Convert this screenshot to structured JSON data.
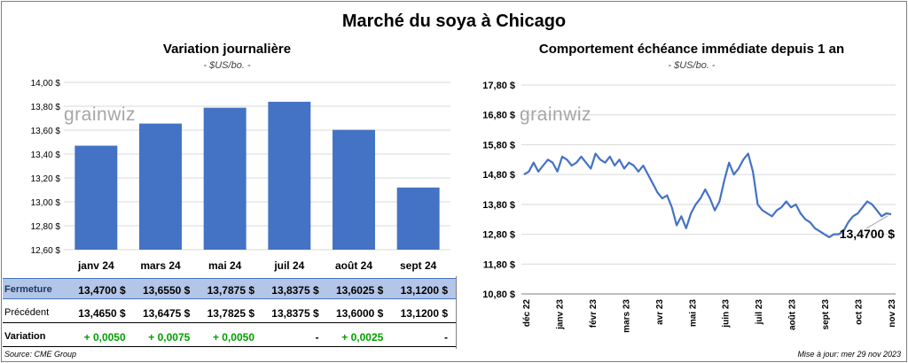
{
  "page": {
    "title": "Marché du soya à Chicago"
  },
  "watermark": "grainwiz",
  "left_chart": {
    "title": "Variation journalière",
    "subtitle": "- $US/bo. -"
  },
  "right_chart": {
    "title": "Comportement échéance immédiate depuis 1 an",
    "subtitle": "- $US/bo. -"
  },
  "table": {
    "rows": [
      {
        "label": "Fermeture",
        "values": [
          "13,4700 $",
          "13,6550 $",
          "13,7875 $",
          "13,8375 $",
          "13,6025 $",
          "13,1200 $"
        ]
      },
      {
        "label": "Précédent",
        "values": [
          "13,4650 $",
          "13,6475 $",
          "13,7825 $",
          "13,8375 $",
          "13,6000 $",
          "13,1200 $"
        ]
      },
      {
        "label": "Variation",
        "values": [
          "+ 0,0050",
          "+ 0,0075",
          "+ 0,0050",
          "-",
          "+ 0,0025",
          "-"
        ]
      }
    ]
  },
  "footer": {
    "source": "Source: CME Group",
    "updated": "Mise à jour: mer 29 nov 2023"
  },
  "colors": {
    "bar": "#4472c4",
    "line": "#4472c4",
    "fermeture_bg": "#b4c6e7",
    "variation_positive": "#00a000"
  },
  "chart_data": [
    {
      "type": "bar",
      "categories": [
        "janv 24",
        "mars 24",
        "mai 24",
        "juil 24",
        "août 24",
        "sept 24"
      ],
      "values": [
        13.47,
        13.655,
        13.7875,
        13.8375,
        13.6025,
        13.12
      ],
      "ylim": [
        12.6,
        14.0
      ],
      "yticks": [
        12.6,
        12.8,
        13.0,
        13.2,
        13.4,
        13.6,
        13.8,
        14.0
      ],
      "ytick_labels": [
        "12,60 $",
        "12,80 $",
        "13,00 $",
        "13,20 $",
        "13,40 $",
        "13,60 $",
        "13,80 $",
        "14,00 $"
      ],
      "grid": true
    },
    {
      "type": "line",
      "ylim": [
        10.8,
        17.8
      ],
      "yticks": [
        10.8,
        11.8,
        12.8,
        13.8,
        14.8,
        15.8,
        16.8,
        17.8
      ],
      "ytick_labels": [
        "10,80 $",
        "11,80 $",
        "12,80 $",
        "13,80 $",
        "14,80 $",
        "15,80 $",
        "16,80 $",
        "17,80 $"
      ],
      "xticks": [
        "déc 22",
        "janv 23",
        "févr 23",
        "mars 23",
        "avr 23",
        "mai 23",
        "juin 23",
        "juil 23",
        "août 23",
        "sept 23",
        "oct 23",
        "nov 23"
      ],
      "last_value_label": "13,4700 $",
      "grid": true,
      "series": [
        {
          "values": [
            14.8,
            14.9,
            15.2,
            14.9,
            15.1,
            15.3,
            15.2,
            14.9,
            15.4,
            15.3,
            15.1,
            15.2,
            15.4,
            15.2,
            15.0,
            15.5,
            15.3,
            15.2,
            15.4,
            15.1,
            15.3,
            15.0,
            15.2,
            15.1,
            14.9,
            15.1,
            14.8,
            14.5,
            14.2,
            14.0,
            14.1,
            13.7,
            13.1,
            13.4,
            13.0,
            13.5,
            13.8,
            14.0,
            14.3,
            14.0,
            13.6,
            13.9,
            14.6,
            15.2,
            14.8,
            15.0,
            15.3,
            15.5,
            14.9,
            13.8,
            13.6,
            13.5,
            13.4,
            13.6,
            13.7,
            13.9,
            13.7,
            13.8,
            13.5,
            13.3,
            13.2,
            13.0,
            12.9,
            12.8,
            12.7,
            12.8,
            12.8,
            12.9,
            13.2,
            13.4,
            13.5,
            13.7,
            13.9,
            13.8,
            13.6,
            13.4,
            13.5,
            13.47
          ]
        }
      ]
    }
  ]
}
